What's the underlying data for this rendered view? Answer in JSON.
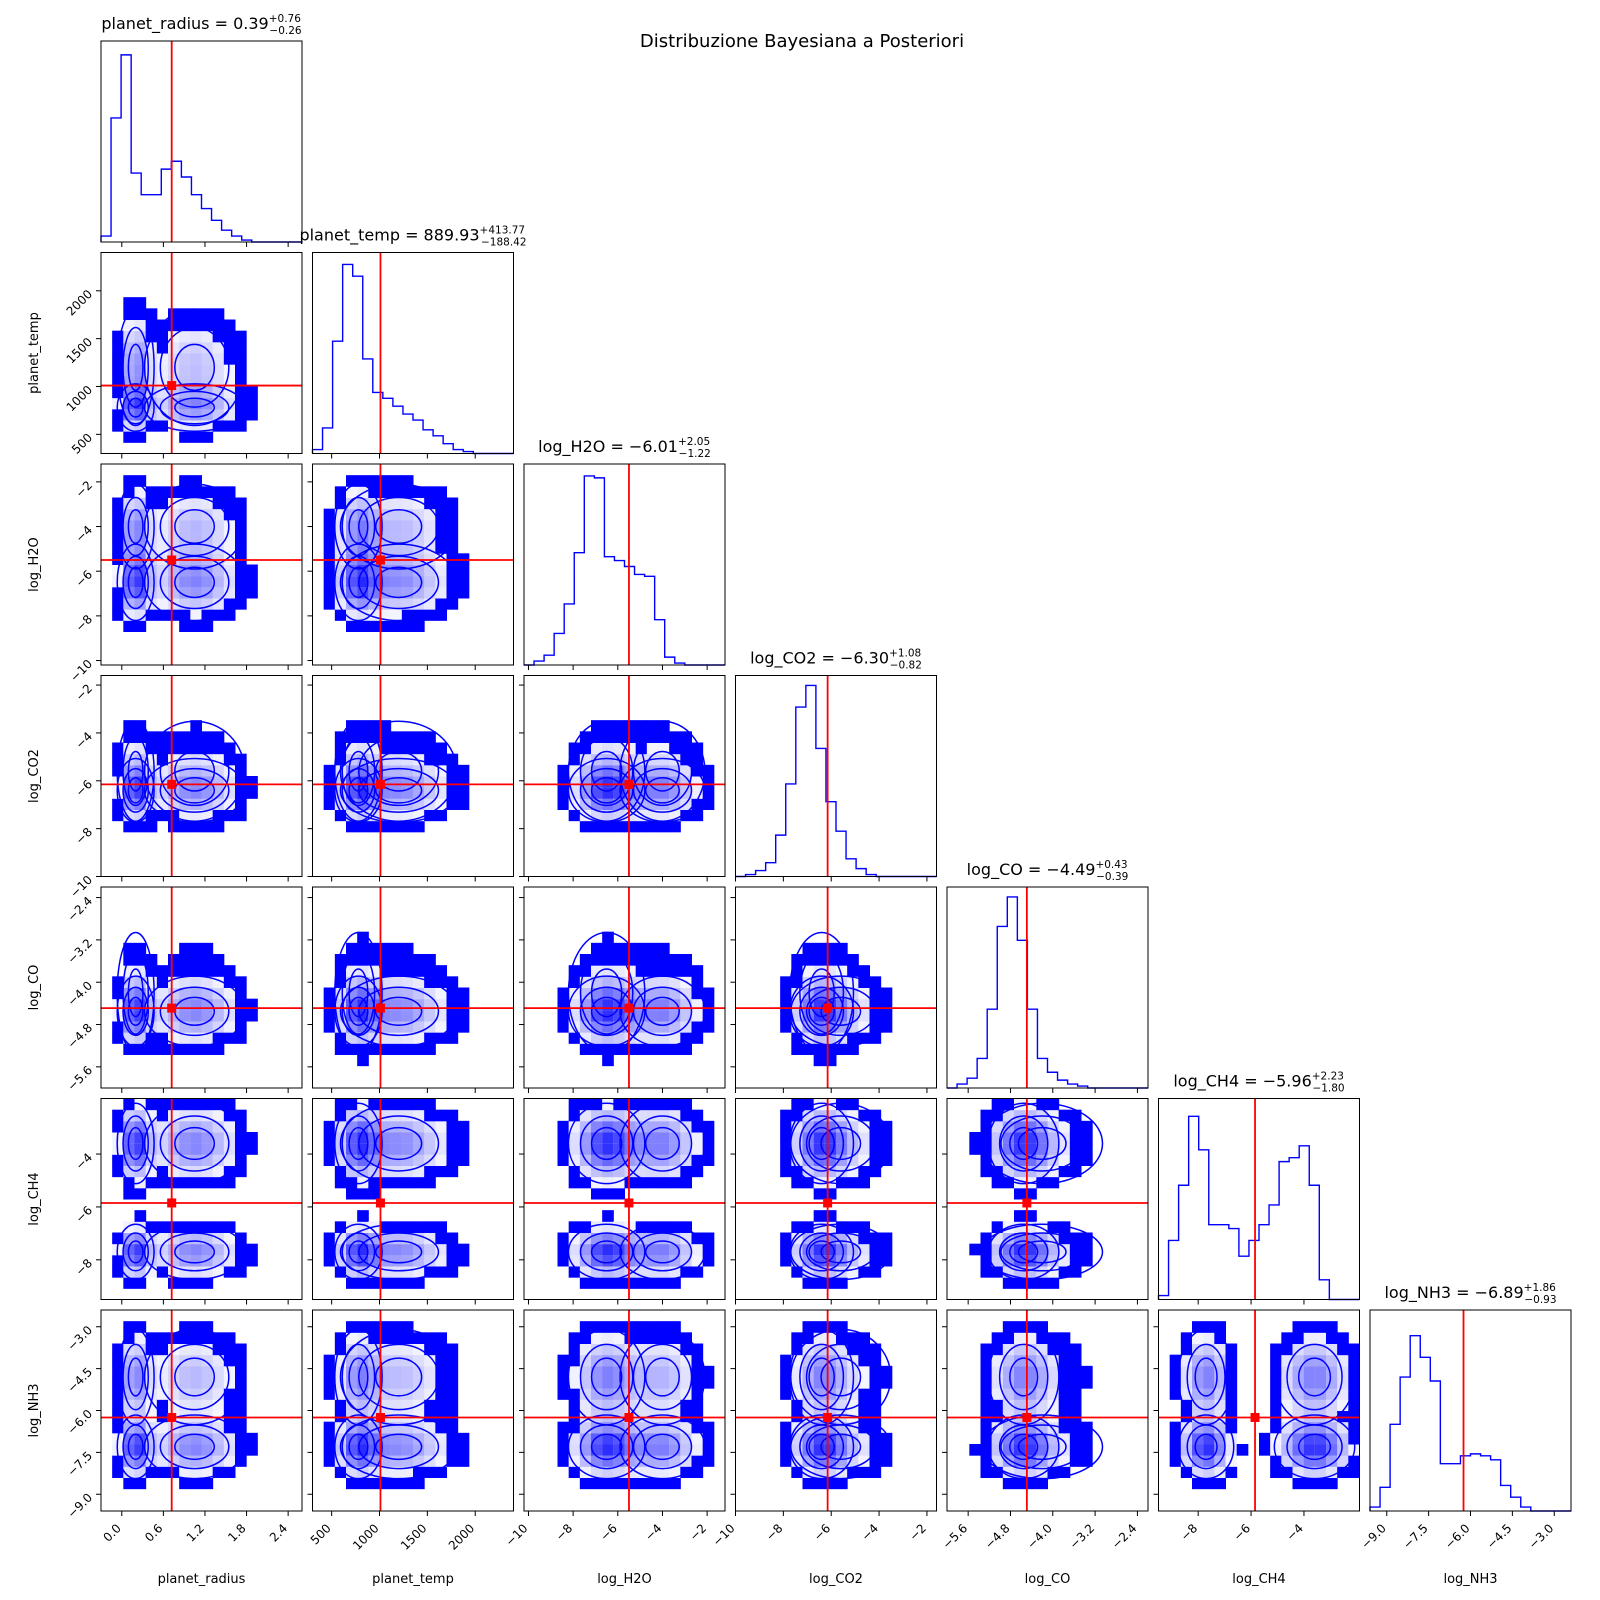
{
  "chart_data": {
    "type": "corner",
    "title": "Distribuzione Bayesiana a Posteriori",
    "colors": {
      "samples": "#0000ff",
      "truth": "#ff0000",
      "frame": "#000000"
    },
    "parameters": [
      {
        "name": "planet_radius",
        "title": {
          "label": "planet_radius = ",
          "median": "0.39",
          "plus": "+0.76",
          "minus": "−0.26"
        },
        "range": [
          -0.3,
          2.6
        ],
        "ticks": [
          {
            "v": 0.0,
            "l": "0.0"
          },
          {
            "v": 0.6,
            "l": "0.6"
          },
          {
            "v": 1.2,
            "l": "1.2"
          },
          {
            "v": 1.8,
            "l": "1.8"
          },
          {
            "v": 2.4,
            "l": "2.4"
          }
        ],
        "truth": 0.72,
        "histogram": [
          0.03,
          0.63,
          0.95,
          0.35,
          0.24,
          0.24,
          0.37,
          0.41,
          0.33,
          0.24,
          0.17,
          0.11,
          0.06,
          0.03,
          0.01,
          0.0,
          0.0,
          0.0,
          0.0,
          0.0
        ],
        "modes": [
          {
            "m": 0.2,
            "s": 0.14,
            "w": 0.6
          },
          {
            "m": 1.05,
            "s": 0.38,
            "w": 0.4
          }
        ]
      },
      {
        "name": "planet_temp",
        "title": {
          "label": "planet_temp = ",
          "median": "889.93",
          "plus": "+413.77",
          "minus": "−188.42"
        },
        "range": [
          300,
          2400
        ],
        "ticks": [
          {
            "v": 500,
            "l": "500"
          },
          {
            "v": 1000,
            "l": "1000"
          },
          {
            "v": 1500,
            "l": "1500"
          },
          {
            "v": 2000,
            "l": "2000"
          }
        ],
        "truth": 1010,
        "histogram": [
          0.02,
          0.13,
          0.57,
          0.96,
          0.9,
          0.48,
          0.31,
          0.28,
          0.24,
          0.2,
          0.17,
          0.12,
          0.09,
          0.05,
          0.02,
          0.01,
          0.0,
          0.0,
          0.0,
          0.0
        ],
        "modes": [
          {
            "m": 780,
            "s": 130,
            "w": 0.55
          },
          {
            "m": 1200,
            "s": 320,
            "w": 0.45
          }
        ]
      },
      {
        "name": "log_H2O",
        "title": {
          "label": "log_H2O = ",
          "median": "−6.01",
          "plus": "+2.05",
          "minus": "−1.22"
        },
        "range": [
          -10.2,
          -1.2
        ],
        "ticks": [
          {
            "v": -10,
            "l": "−10"
          },
          {
            "v": -8,
            "l": "−8"
          },
          {
            "v": -6,
            "l": "−6"
          },
          {
            "v": -4,
            "l": "−4"
          },
          {
            "v": -2,
            "l": "−2"
          }
        ],
        "truth": -5.5,
        "histogram": [
          0.0,
          0.02,
          0.05,
          0.16,
          0.31,
          0.57,
          0.96,
          0.95,
          0.55,
          0.53,
          0.5,
          0.46,
          0.45,
          0.23,
          0.04,
          0.01,
          0.0,
          0.0,
          0.0,
          0.0
        ],
        "modes": [
          {
            "m": -6.5,
            "s": 0.9,
            "w": 0.6
          },
          {
            "m": -4.0,
            "s": 1.0,
            "w": 0.4
          }
        ]
      },
      {
        "name": "log_CO2",
        "title": {
          "label": "log_CO2 = ",
          "median": "−6.30",
          "plus": "+1.08",
          "minus": "−0.82"
        },
        "range": [
          -10.0,
          -1.6
        ],
        "ticks": [
          {
            "v": -10,
            "l": "−10"
          },
          {
            "v": -8,
            "l": "−8"
          },
          {
            "v": -6,
            "l": "−6"
          },
          {
            "v": -4,
            "l": "−4"
          },
          {
            "v": -2,
            "l": "−2"
          }
        ],
        "truth": -6.15,
        "histogram": [
          0.0,
          0.01,
          0.03,
          0.07,
          0.21,
          0.47,
          0.86,
          0.97,
          0.65,
          0.38,
          0.23,
          0.09,
          0.04,
          0.01,
          0.0,
          0.0,
          0.0,
          0.0,
          0.0,
          0.0
        ],
        "modes": [
          {
            "m": -6.4,
            "s": 0.7,
            "w": 0.7
          },
          {
            "m": -5.6,
            "s": 1.1,
            "w": 0.3
          }
        ]
      },
      {
        "name": "log_CO",
        "title": {
          "label": "log_CO = ",
          "median": "−4.49",
          "plus": "+0.43",
          "minus": "−0.39"
        },
        "range": [
          -6.0,
          -2.2
        ],
        "ticks": [
          {
            "v": -5.6,
            "l": "−5.6"
          },
          {
            "v": -4.8,
            "l": "−4.8"
          },
          {
            "v": -4.0,
            "l": "−4.0"
          },
          {
            "v": -3.2,
            "l": "−3.2"
          },
          {
            "v": -2.4,
            "l": "−2.4"
          }
        ],
        "truth": -4.49,
        "histogram": [
          0.0,
          0.02,
          0.05,
          0.15,
          0.4,
          0.82,
          0.97,
          0.75,
          0.4,
          0.15,
          0.08,
          0.04,
          0.02,
          0.01,
          0.0,
          0.0,
          0.0,
          0.0,
          0.0,
          0.0
        ],
        "modes": [
          {
            "m": -4.55,
            "s": 0.35,
            "w": 0.8
          },
          {
            "m": -4.2,
            "s": 0.6,
            "w": 0.2
          }
        ]
      },
      {
        "name": "log_CH4",
        "title": {
          "label": "log_CH4 = ",
          "median": "−5.96",
          "plus": "+2.23",
          "minus": "−1.80"
        },
        "range": [
          -9.5,
          -1.9
        ],
        "ticks": [
          {
            "v": -8,
            "l": "−8"
          },
          {
            "v": -6,
            "l": "−6"
          },
          {
            "v": -4,
            "l": "−4"
          }
        ],
        "truth": -5.85,
        "histogram": [
          0.02,
          0.3,
          0.58,
          0.93,
          0.76,
          0.38,
          0.38,
          0.36,
          0.22,
          0.3,
          0.38,
          0.48,
          0.7,
          0.72,
          0.78,
          0.58,
          0.1,
          0.0,
          0.0,
          0.0
        ],
        "modes": [
          {
            "m": -7.7,
            "s": 0.55,
            "w": 0.5
          },
          {
            "m": -3.6,
            "s": 0.8,
            "w": 0.5
          }
        ]
      },
      {
        "name": "log_NH3",
        "title": {
          "label": "log_NH3 = ",
          "median": "−6.89",
          "plus": "+1.86",
          "minus": "−0.93"
        },
        "range": [
          -9.6,
          -2.4
        ],
        "ticks": [
          {
            "v": -9.0,
            "l": "−9.0"
          },
          {
            "v": -7.5,
            "l": "−7.5"
          },
          {
            "v": -6.0,
            "l": "−6.0"
          },
          {
            "v": -4.5,
            "l": "−4.5"
          },
          {
            "v": -3.0,
            "l": "−3.0"
          }
        ],
        "truth": -6.25,
        "histogram": [
          0.02,
          0.12,
          0.44,
          0.68,
          0.89,
          0.78,
          0.66,
          0.24,
          0.24,
          0.28,
          0.29,
          0.28,
          0.26,
          0.13,
          0.07,
          0.02,
          0.0,
          0.0,
          0.0,
          0.0
        ],
        "modes": [
          {
            "m": -7.3,
            "s": 0.6,
            "w": 0.6
          },
          {
            "m": -4.8,
            "s": 0.9,
            "w": 0.4
          }
        ]
      }
    ]
  }
}
